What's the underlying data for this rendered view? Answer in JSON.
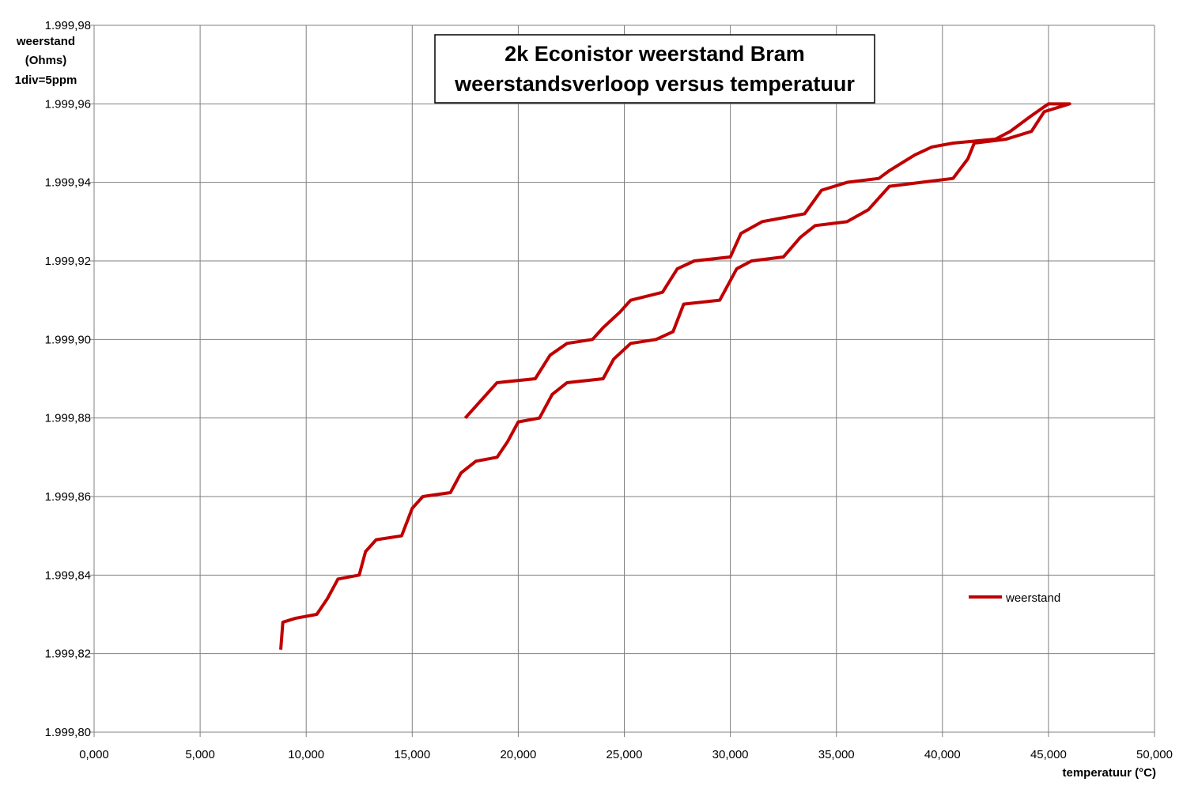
{
  "chart_data": {
    "type": "line",
    "title": "2k Econistor weerstand Bram",
    "subtitle": "weerstandsverloop versus temperatuur",
    "ylabel": [
      "weerstand",
      "(Ohms)",
      "1div=5ppm"
    ],
    "xlabel": "temperatuur (°C)",
    "x": [
      8.8,
      8.9,
      9.5,
      10.5,
      11,
      11.5,
      12.5,
      12.8,
      13.3,
      14.5,
      15,
      15.5,
      16.8,
      17.3,
      18,
      19,
      19.5,
      20,
      21,
      21.6,
      22.3,
      24,
      24.5,
      25.3,
      26.5,
      27.3,
      27.8,
      29.5,
      30.3,
      31,
      32.5,
      33.3,
      34,
      35.5,
      36.5,
      37.5,
      39,
      40.5,
      41.2,
      41.5,
      43,
      44.2,
      44.8,
      46,
      45,
      44.2,
      43.2,
      42.5,
      40.5,
      39.5,
      38.7,
      37.5,
      37,
      35.5,
      34.3,
      33.5,
      32.5,
      31.5,
      30.5,
      30,
      28.3,
      27.5,
      26.8,
      25.3,
      24.8,
      24,
      23.5,
      22.3,
      21.5,
      20.8,
      19,
      18.5,
      17.5
    ],
    "series": [
      {
        "name": "weerstand",
        "color": "#c00000",
        "values": [
          1999.821,
          1999.828,
          1999.829,
          1999.83,
          1999.834,
          1999.839,
          1999.84,
          1999.846,
          1999.849,
          1999.85,
          1999.857,
          1999.86,
          1999.861,
          1999.866,
          1999.869,
          1999.87,
          1999.874,
          1999.879,
          1999.88,
          1999.886,
          1999.889,
          1999.89,
          1999.895,
          1999.899,
          1999.9,
          1999.902,
          1999.909,
          1999.91,
          1999.918,
          1999.92,
          1999.921,
          1999.926,
          1999.929,
          1999.93,
          1999.933,
          1999.939,
          1999.94,
          1999.941,
          1999.946,
          1999.95,
          1999.951,
          1999.953,
          1999.958,
          1999.96,
          1999.96,
          1999.957,
          1999.953,
          1999.951,
          1999.95,
          1999.949,
          1999.947,
          1999.943,
          1999.941,
          1999.94,
          1999.938,
          1999.932,
          1999.931,
          1999.93,
          1999.927,
          1999.921,
          1999.92,
          1999.918,
          1999.912,
          1999.91,
          1999.907,
          1999.903,
          1999.9,
          1999.899,
          1999.896,
          1999.89,
          1999.889,
          1999.886,
          1999.88
        ]
      }
    ],
    "xlim": [
      0,
      50
    ],
    "xticks": [
      {
        "value": 0,
        "label": "0,000"
      },
      {
        "value": 5,
        "label": "5,000"
      },
      {
        "value": 10,
        "label": "10,000"
      },
      {
        "value": 15,
        "label": "15,000"
      },
      {
        "value": 20,
        "label": "20,000"
      },
      {
        "value": 25,
        "label": "25,000"
      },
      {
        "value": 30,
        "label": "30,000"
      },
      {
        "value": 35,
        "label": "35,000"
      },
      {
        "value": 40,
        "label": "40,000"
      },
      {
        "value": 45,
        "label": "45,000"
      },
      {
        "value": 50,
        "label": "50,000"
      }
    ],
    "ylim": [
      1999.8,
      1999.98
    ],
    "yticks": [
      {
        "value": 1999.8,
        "label": "1.999,80"
      },
      {
        "value": 1999.82,
        "label": "1.999,82"
      },
      {
        "value": 1999.84,
        "label": "1.999,84"
      },
      {
        "value": 1999.86,
        "label": "1.999,86"
      },
      {
        "value": 1999.88,
        "label": "1.999,88"
      },
      {
        "value": 1999.9,
        "label": "1.999,90"
      },
      {
        "value": 1999.92,
        "label": "1.999,92"
      },
      {
        "value": 1999.94,
        "label": "1.999,94"
      },
      {
        "value": 1999.96,
        "label": "1.999,96"
      },
      {
        "value": 1999.98,
        "label": "1.999,98"
      }
    ],
    "grid": true
  }
}
